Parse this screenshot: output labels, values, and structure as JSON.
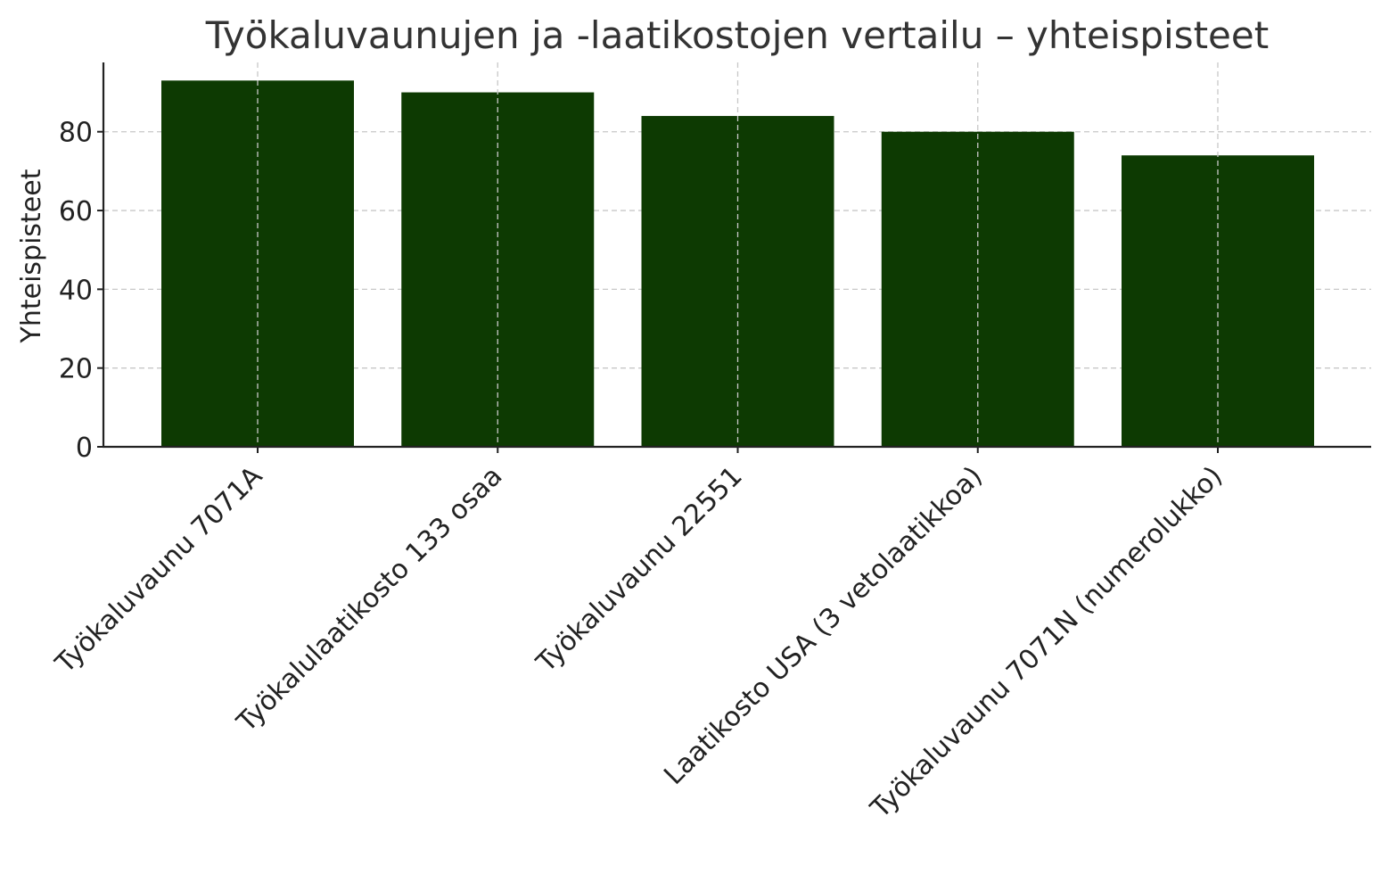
{
  "chart_data": {
    "type": "bar",
    "title": "Työkaluvaunujen ja -laatikostojen vertailu – yhteispisteet",
    "xlabel": "",
    "ylabel": "Yhteispisteet",
    "categories": [
      "Työkaluvaunu 7071A",
      "Työkalulaatikosto 133 osaa",
      "Työkaluvaunu 22551",
      "Laatikosto USA (3 vetolaatikkoa)",
      "Työkaluvaunu 7071N (numerolukko)"
    ],
    "values": [
      93,
      90,
      84,
      80,
      74
    ],
    "ylim": [
      0,
      97.6
    ],
    "yticks": [
      0,
      20,
      40,
      60,
      80
    ],
    "grid": true,
    "bar_color": "#0d3a02"
  }
}
